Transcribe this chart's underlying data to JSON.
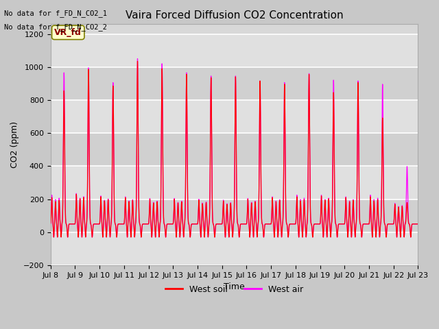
{
  "title": "Vaira Forced Diffusion CO2 Concentration",
  "xlabel": "Time",
  "ylabel": "CO2 (ppm)",
  "ylim": [
    -200,
    1260
  ],
  "no_data_text_1": "No data for f_FD_N_CO2_1",
  "no_data_text_2": "No data for f_FD_N_CO2_2",
  "annotation_text": "VR_fd",
  "west_soil_color": "#ff0000",
  "west_air_color": "#ff00ff",
  "legend_soil_label": "West soil",
  "legend_air_label": "West air",
  "plot_bg_color": "#d8d8d8",
  "fig_bg_color": "#c8c8c8",
  "grid_color": "#ffffff",
  "total_days": 15,
  "day_peaks_air": [
    920,
    950,
    860,
    1005,
    975,
    920,
    900,
    900,
    870,
    860,
    915,
    875,
    870,
    850,
    350
  ],
  "day_peaks_soil": [
    810,
    940,
    840,
    990,
    945,
    910,
    890,
    895,
    870,
    850,
    910,
    800,
    860,
    645,
    130
  ],
  "trough_air": -80,
  "trough_soil": -80,
  "bump_peaks_air": [
    175,
    185,
    170,
    165,
    155,
    155,
    150,
    145,
    155,
    165,
    175,
    175,
    165,
    175,
    125
  ],
  "bump_peaks_soil": [
    160,
    180,
    165,
    160,
    150,
    150,
    145,
    140,
    150,
    160,
    165,
    170,
    160,
    165,
    120
  ]
}
